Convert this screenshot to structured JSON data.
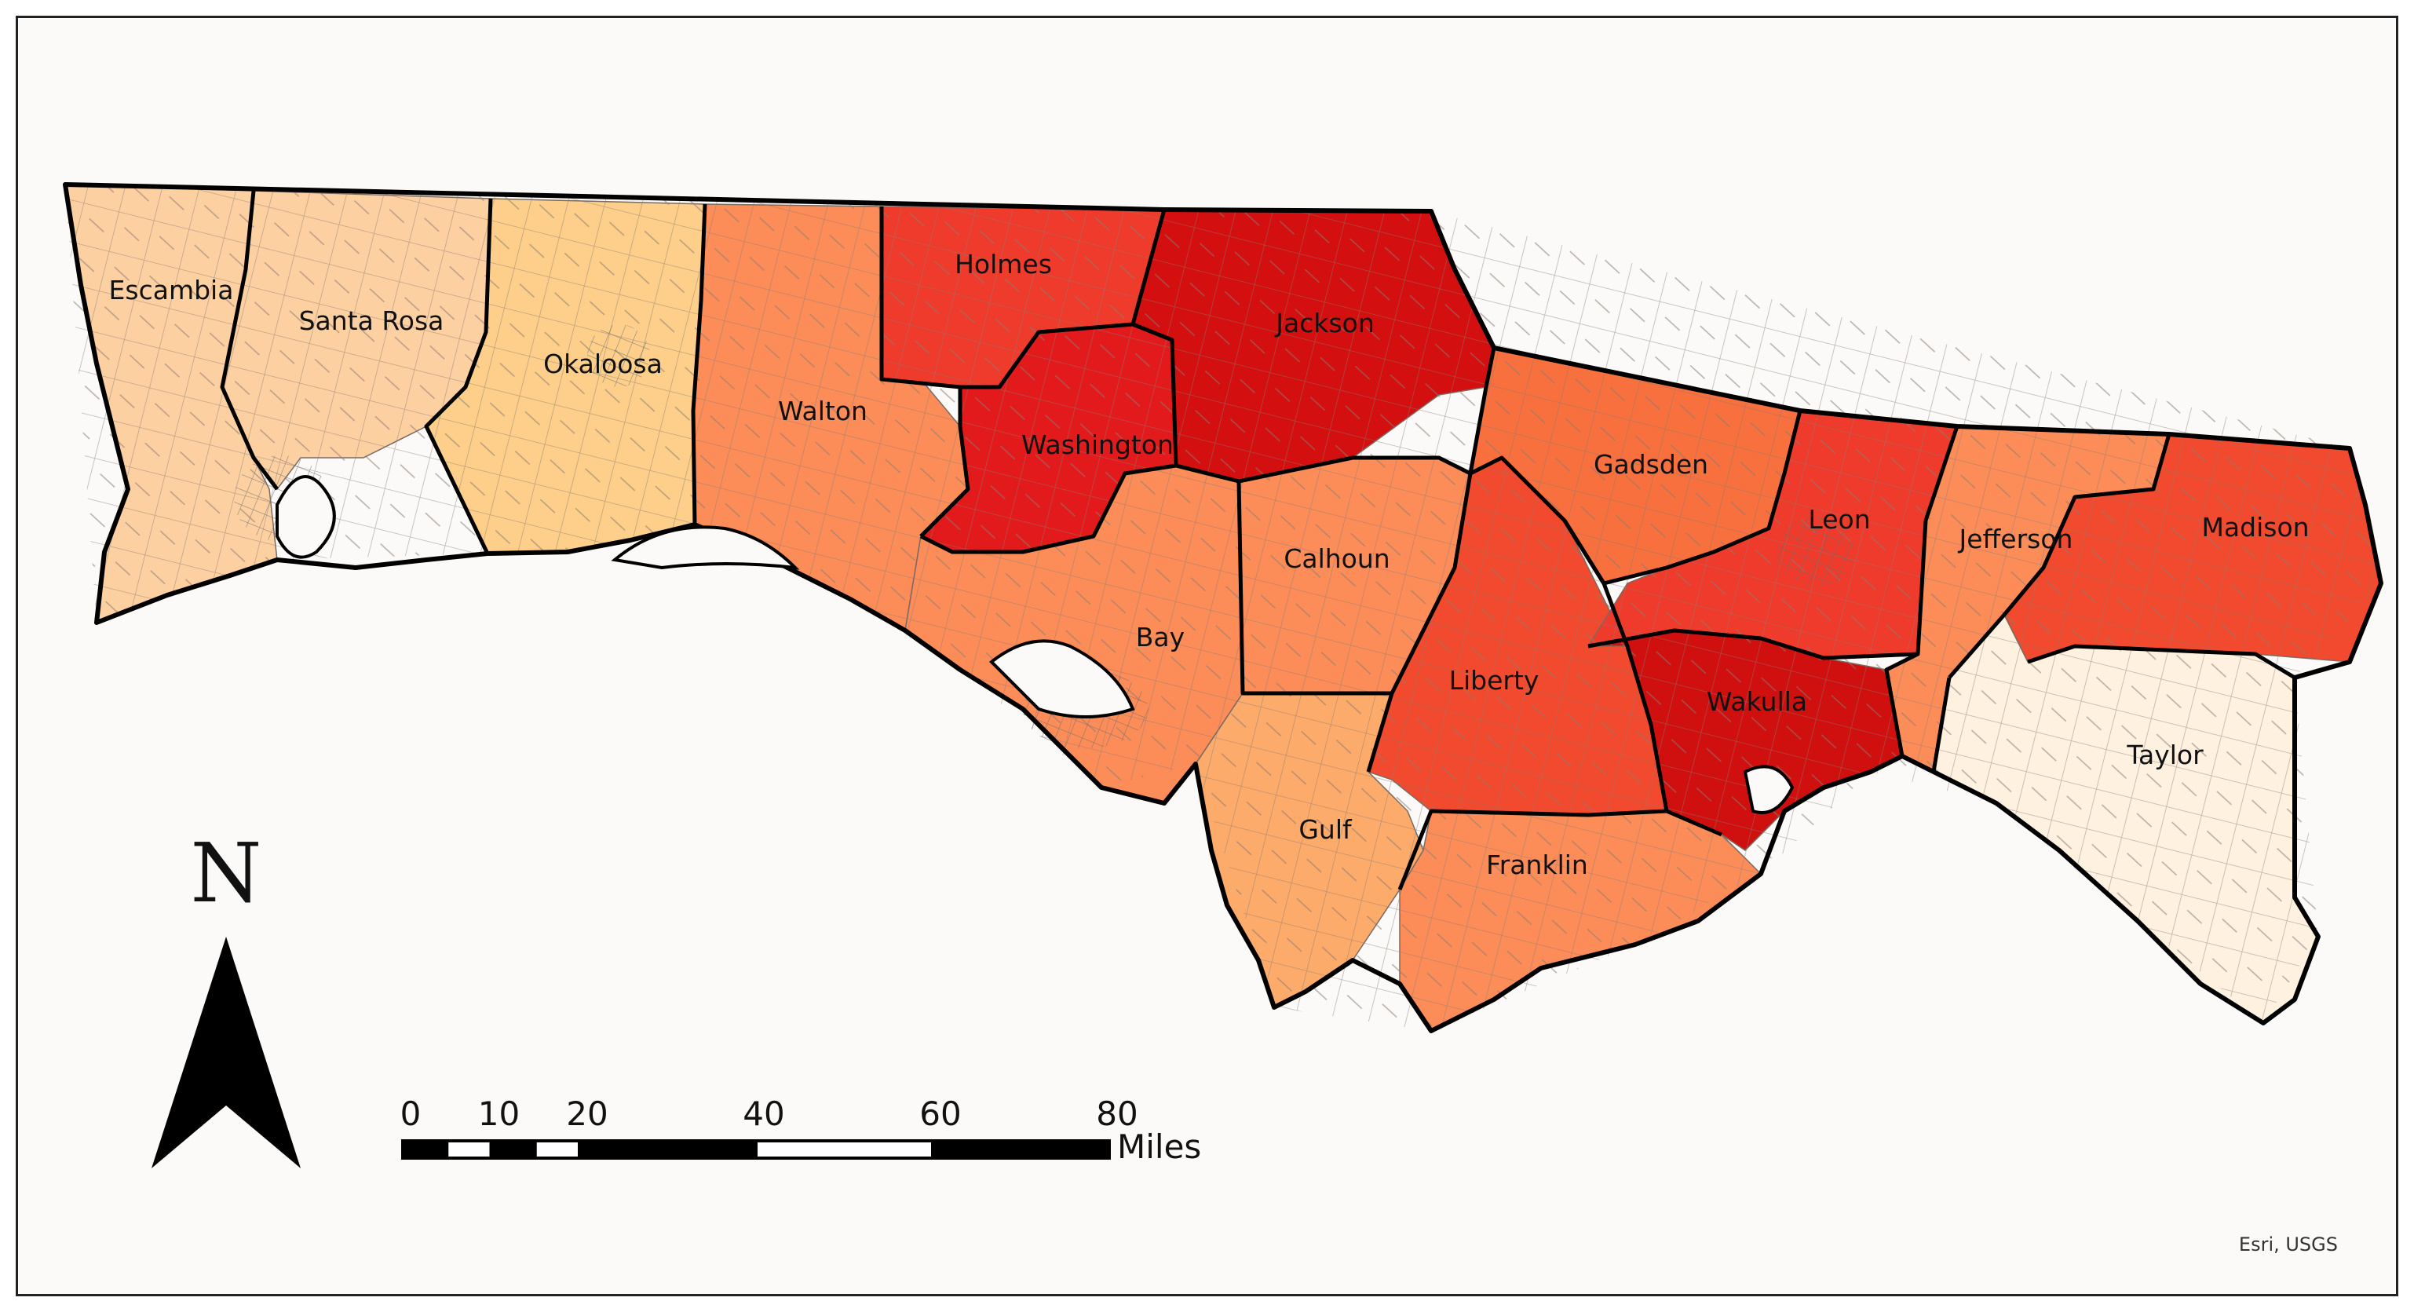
{
  "map": {
    "counties": [
      {
        "id": "escambia",
        "label": "Escambia",
        "fill": "#fdd0a2",
        "tint": "#fb6a4a"
      },
      {
        "id": "santa-rosa",
        "label": "Santa Rosa",
        "fill": "#fdd0a2",
        "tint": "#fd8d3c"
      },
      {
        "id": "okaloosa",
        "label": "Okaloosa",
        "fill": "#fdcf8a",
        "tint": "#fee6ce"
      },
      {
        "id": "walton",
        "label": "Walton",
        "fill": "#fc8d59",
        "tint": "#ef3b2c"
      },
      {
        "id": "holmes",
        "label": "Holmes",
        "fill": "#ef3b2c",
        "tint": "#cb181d"
      },
      {
        "id": "washington",
        "label": "Washington",
        "fill": "#e31a1c",
        "tint": "#cb0000"
      },
      {
        "id": "jackson",
        "label": "Jackson",
        "fill": "#d30f0f",
        "tint": "#ef3b2c"
      },
      {
        "id": "bay",
        "label": "Bay",
        "fill": "#fc8d59",
        "tint": "#ef3b2c"
      },
      {
        "id": "calhoun",
        "label": "Calhoun",
        "fill": "#fc8d59",
        "tint": "#ef3b2c"
      },
      {
        "id": "gulf",
        "label": "Gulf",
        "fill": "#fcab6b",
        "tint": "#fdd0a2"
      },
      {
        "id": "liberty",
        "label": "Liberty",
        "fill": "#f24a2e",
        "tint": "#ef3b2c"
      },
      {
        "id": "franklin",
        "label": "Franklin",
        "fill": "#fc8d59",
        "tint": "#ef3b2c"
      },
      {
        "id": "gadsden",
        "label": "Gadsden",
        "fill": "#f7703e",
        "tint": "#ef3b2c"
      },
      {
        "id": "leon",
        "label": "Leon",
        "fill": "#ef3b2c",
        "tint": "#fc8d59"
      },
      {
        "id": "wakulla",
        "label": "Wakulla",
        "fill": "#d00f0f",
        "tint": "#fc8d59"
      },
      {
        "id": "jefferson",
        "label": "Jefferson",
        "fill": "#fc8d59",
        "tint": "#ef3b2c"
      },
      {
        "id": "madison",
        "label": "Madison",
        "fill": "#f24a2e",
        "tint": "#fc8d59"
      },
      {
        "id": "taylor",
        "label": "Taylor",
        "fill": "#fff1e0",
        "tint": "#fc8d59"
      }
    ],
    "north_arrow": {
      "letter": "N"
    },
    "scale_bar": {
      "ticks": [
        "0",
        "10",
        "20",
        "40",
        "60",
        "80"
      ],
      "units": "Miles"
    },
    "attribution": "Esri, USGS",
    "colors": {
      "frame": "#222222",
      "background": "#fbfaf8",
      "outline": "#000000",
      "tract": "#7a6a60"
    }
  }
}
